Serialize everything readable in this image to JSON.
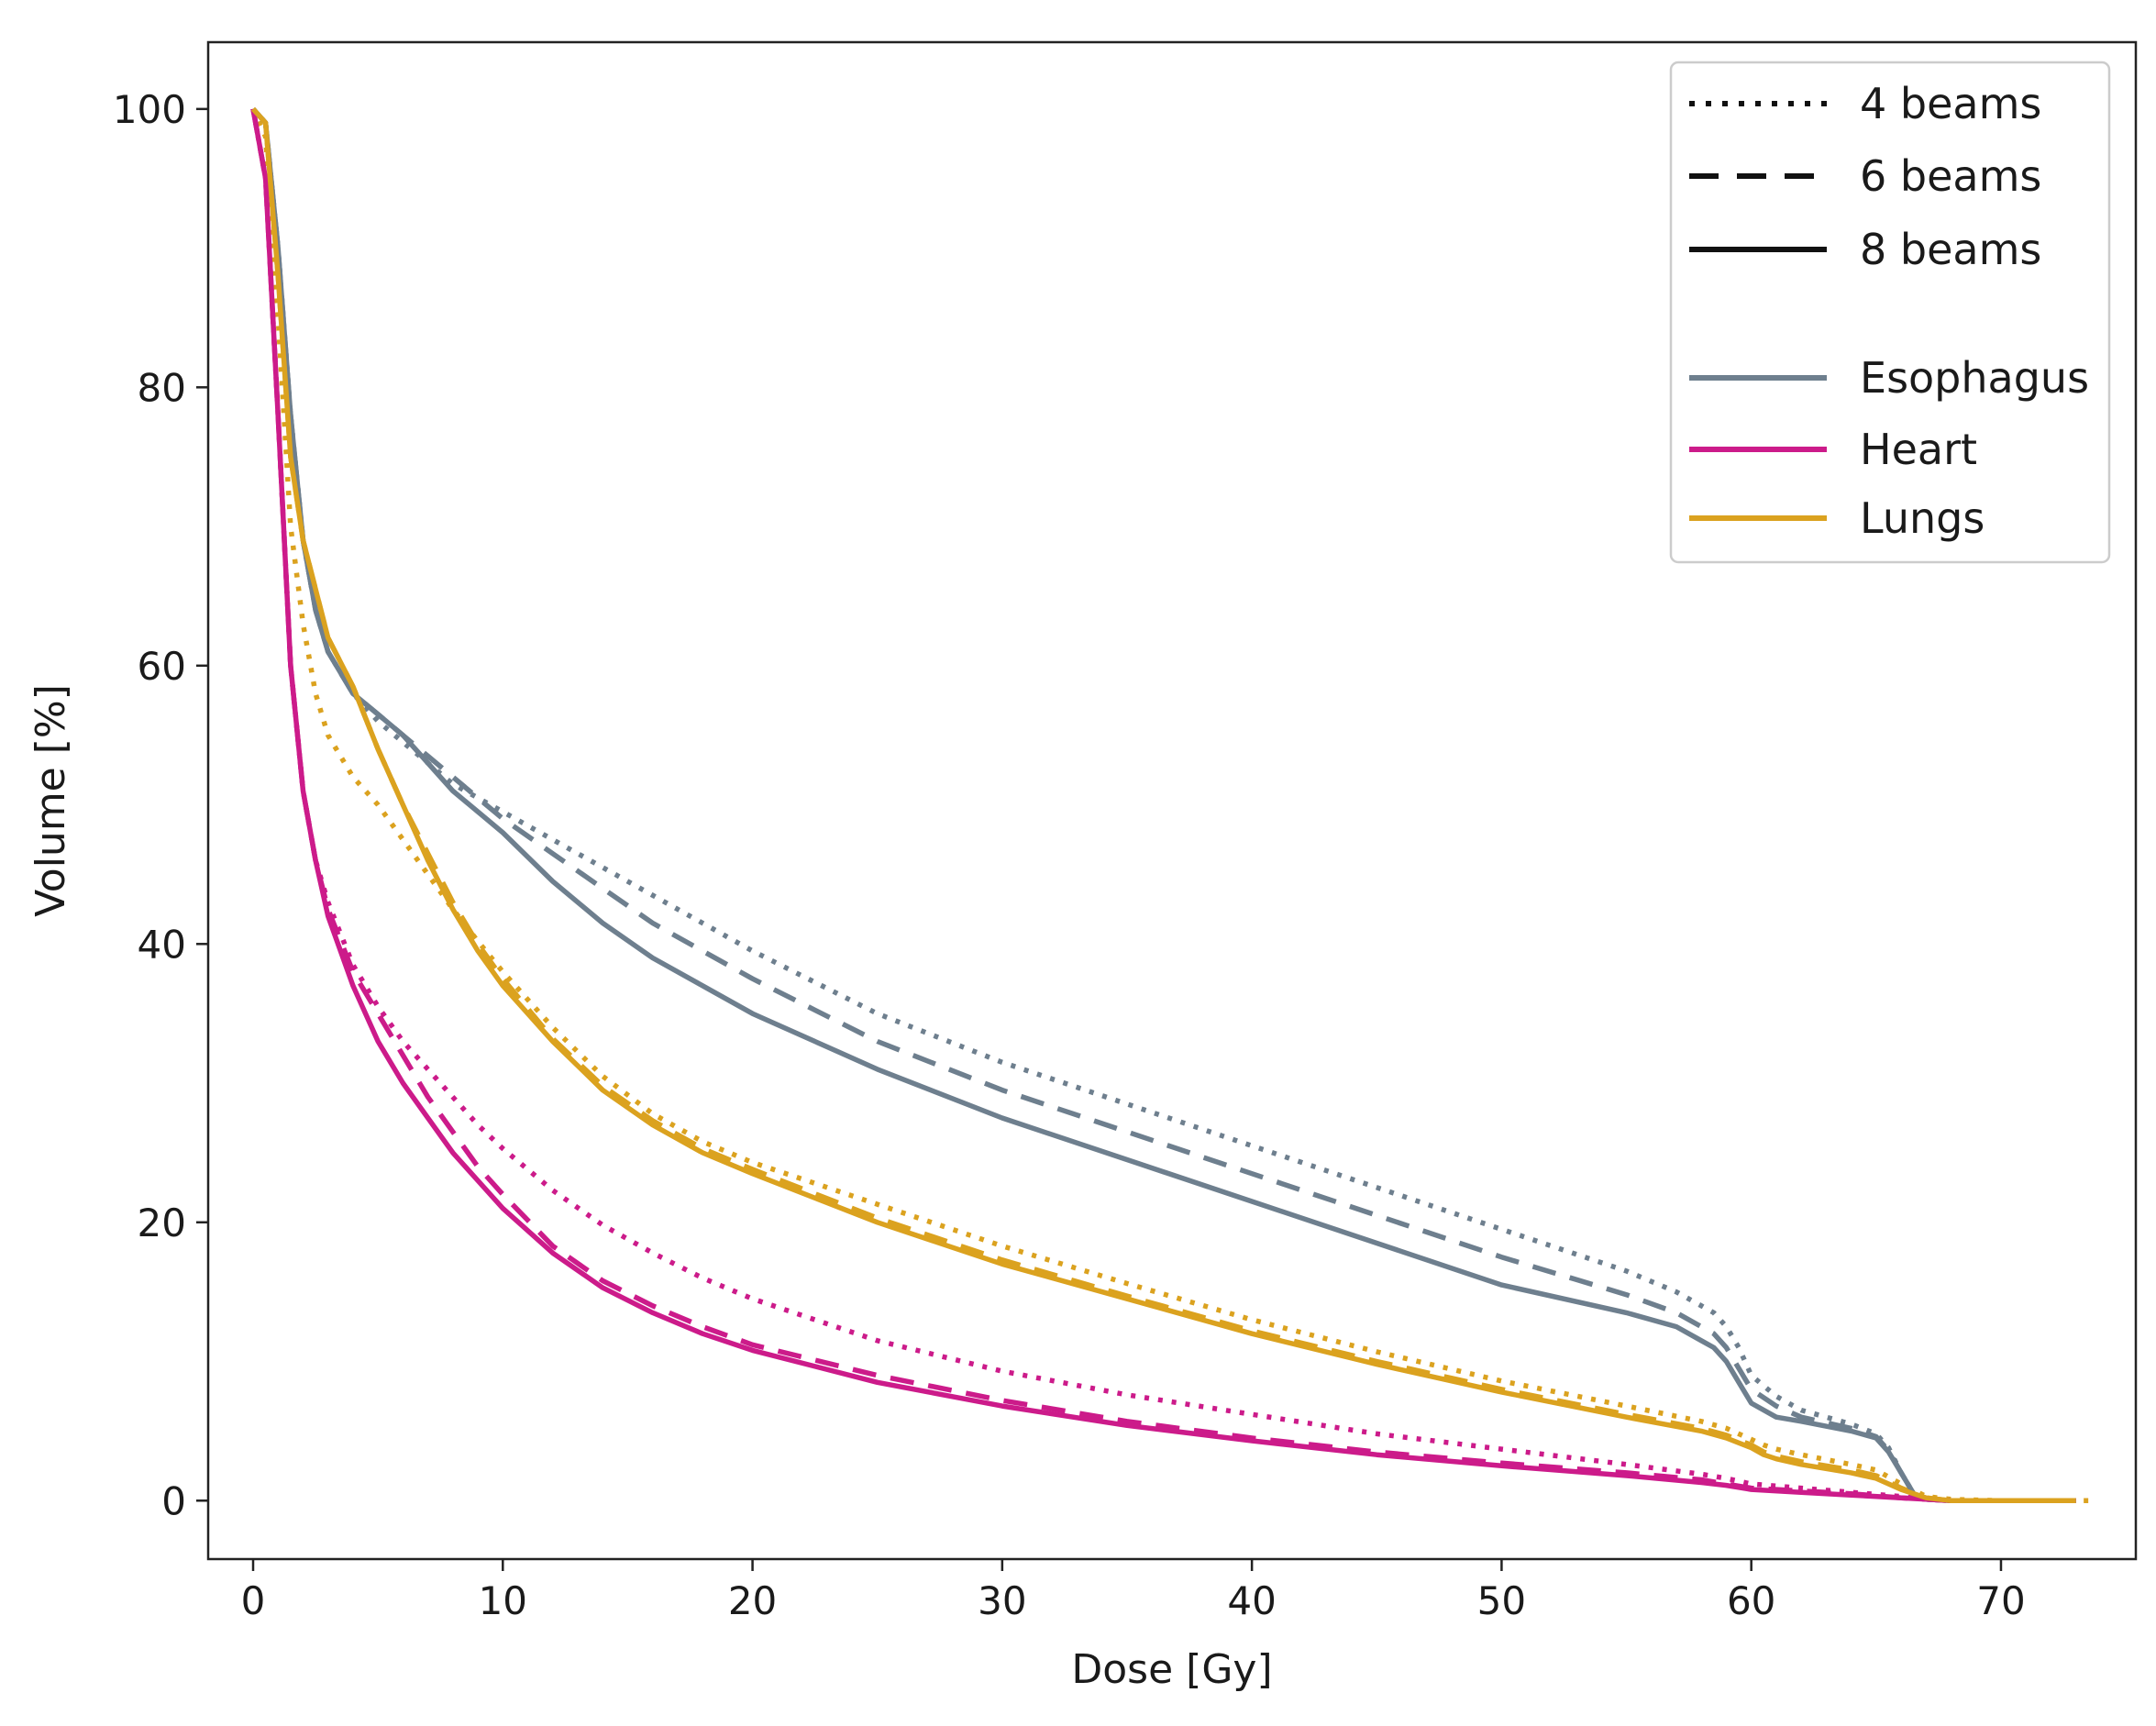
{
  "chart_data": {
    "type": "line",
    "title": "",
    "xlabel": "Dose [Gy]",
    "ylabel": "Volume [%]",
    "xlim": [
      -1.8,
      75.4
    ],
    "ylim": [
      -4.2,
      104.8
    ],
    "xticks": [
      0,
      10,
      20,
      30,
      40,
      50,
      60,
      70
    ],
    "yticks": [
      0,
      20,
      40,
      60,
      80,
      100
    ],
    "grid": false,
    "legend_position": "top-right",
    "legend": {
      "styles": [
        {
          "label": "4 beams",
          "dash": "dotted"
        },
        {
          "label": "6 beams",
          "dash": "dashed"
        },
        {
          "label": "8 beams",
          "dash": "solid"
        }
      ],
      "structures": [
        {
          "label": "Esophagus",
          "color": "#6e7f8e"
        },
        {
          "label": "Heart",
          "color": "#cc1b8a"
        },
        {
          "label": "Lungs",
          "color": "#dba21f"
        }
      ]
    },
    "series": [
      {
        "name": "Esophagus",
        "beams": "8 beams",
        "color": "#6e7f8e",
        "dash": "solid",
        "x": [
          0,
          0.5,
          1,
          1.5,
          2,
          2.5,
          3,
          4,
          5,
          6,
          7,
          8,
          9,
          10,
          12,
          14,
          16,
          18,
          20,
          25,
          30,
          35,
          40,
          45,
          50,
          55,
          57,
          58,
          58.5,
          59,
          59.5,
          60,
          61,
          62,
          64,
          65,
          65.5,
          66,
          66.5,
          67,
          68,
          70,
          72,
          73
        ],
        "y": [
          100,
          99,
          90,
          78,
          69,
          64,
          61,
          58,
          56.5,
          55,
          53,
          51,
          49.5,
          48,
          44.5,
          41.5,
          39,
          37,
          35,
          31,
          27.5,
          24.5,
          21.5,
          18.5,
          15.5,
          13.5,
          12.5,
          11.5,
          11,
          10,
          8.5,
          7,
          6,
          5.7,
          5,
          4.5,
          3.5,
          2,
          0.5,
          0.1,
          0,
          0,
          0,
          0
        ]
      },
      {
        "name": "Esophagus",
        "beams": "6 beams",
        "color": "#6e7f8e",
        "dash": "dashed",
        "x": [
          0,
          0.5,
          1,
          1.5,
          2,
          2.5,
          3,
          4,
          5,
          6,
          7,
          8,
          9,
          10,
          12,
          14,
          16,
          18,
          20,
          25,
          30,
          35,
          40,
          45,
          50,
          55,
          57,
          58,
          58.5,
          59,
          59.5,
          60,
          61,
          62,
          64,
          65,
          65.5,
          66,
          66.5,
          67,
          68,
          70,
          72,
          73
        ],
        "y": [
          100,
          99,
          90,
          78,
          69,
          64,
          61,
          58,
          56.5,
          55,
          53.5,
          52,
          50.5,
          49,
          46.5,
          44,
          41.5,
          39.5,
          37.5,
          33,
          29.5,
          26.5,
          23.5,
          20.5,
          17.5,
          14.8,
          13.5,
          12.5,
          12,
          11,
          9.5,
          8,
          6.8,
          6,
          5.2,
          4.6,
          3.6,
          2,
          0.5,
          0.1,
          0,
          0,
          0,
          0
        ]
      },
      {
        "name": "Esophagus",
        "beams": "4 beams",
        "color": "#6e7f8e",
        "dash": "dotted",
        "x": [
          0,
          0.5,
          1,
          1.5,
          2,
          2.5,
          3,
          4,
          5,
          6,
          7,
          8,
          9,
          10,
          12,
          14,
          16,
          18,
          20,
          25,
          30,
          35,
          40,
          45,
          50,
          55,
          57,
          58,
          58.5,
          59,
          59.5,
          60,
          61,
          62,
          64,
          65,
          65.5,
          66,
          66.5,
          67,
          68,
          70,
          72,
          73
        ],
        "y": [
          100,
          99,
          90,
          78,
          69,
          64,
          61,
          58,
          56,
          54.5,
          53,
          51.5,
          50.5,
          49.5,
          47.5,
          45.5,
          43.5,
          41.5,
          39.5,
          35,
          31.5,
          28.5,
          25.5,
          22.5,
          19.5,
          16.5,
          15,
          14,
          13.5,
          12.5,
          11,
          9,
          7.5,
          6.5,
          5.5,
          4.8,
          3.8,
          2,
          0.5,
          0.1,
          0,
          0,
          0,
          0
        ]
      },
      {
        "name": "Heart",
        "beams": "8 beams",
        "color": "#cc1b8a",
        "dash": "solid",
        "x": [
          0,
          0.5,
          1,
          1.5,
          2,
          2.5,
          3,
          4,
          5,
          6,
          7,
          8,
          9,
          10,
          12,
          14,
          16,
          18,
          20,
          25,
          30,
          35,
          40,
          45,
          50,
          55,
          58,
          59,
          60,
          62,
          64,
          66,
          67,
          68,
          70,
          72,
          73
        ],
        "y": [
          100,
          95,
          78,
          60,
          51,
          46,
          42,
          37,
          33,
          30,
          27.5,
          25,
          23,
          21,
          17.8,
          15.3,
          13.5,
          12,
          10.8,
          8.5,
          6.8,
          5.4,
          4.3,
          3.3,
          2.5,
          1.8,
          1.3,
          1.1,
          0.8,
          0.6,
          0.4,
          0.2,
          0.1,
          0,
          0,
          0,
          0
        ]
      },
      {
        "name": "Heart",
        "beams": "6 beams",
        "color": "#cc1b8a",
        "dash": "dashed",
        "x": [
          0,
          0.5,
          1,
          1.5,
          2,
          2.5,
          3,
          4,
          5,
          6,
          7,
          8,
          9,
          10,
          12,
          14,
          16,
          18,
          20,
          25,
          30,
          35,
          40,
          45,
          50,
          55,
          58,
          59,
          60,
          62,
          64,
          66,
          67,
          68,
          70,
          72,
          73
        ],
        "y": [
          100,
          95,
          78,
          60,
          51,
          46,
          42.5,
          38,
          35,
          32,
          29,
          26.5,
          24,
          22,
          18.3,
          15.8,
          14,
          12.5,
          11.2,
          9,
          7.2,
          5.7,
          4.5,
          3.5,
          2.7,
          2,
          1.5,
          1.2,
          0.9,
          0.7,
          0.5,
          0.2,
          0.1,
          0,
          0,
          0,
          0
        ]
      },
      {
        "name": "Heart",
        "beams": "4 beams",
        "color": "#cc1b8a",
        "dash": "dotted",
        "x": [
          0,
          0.5,
          1,
          1.5,
          2,
          2.5,
          3,
          4,
          5,
          6,
          7,
          8,
          9,
          10,
          12,
          14,
          16,
          18,
          20,
          25,
          30,
          35,
          40,
          45,
          50,
          55,
          58,
          59,
          60,
          62,
          64,
          66,
          67,
          68,
          70,
          72,
          73
        ],
        "y": [
          100,
          95,
          78,
          60,
          51,
          46,
          43,
          38.5,
          35.5,
          33,
          31,
          29,
          27,
          25.3,
          22.3,
          19.8,
          17.8,
          16,
          14.5,
          11.5,
          9.3,
          7.6,
          6.2,
          4.8,
          3.7,
          2.6,
          1.9,
          1.6,
          1.2,
          0.9,
          0.6,
          0.3,
          0.1,
          0,
          0,
          0,
          0
        ]
      },
      {
        "name": "Lungs",
        "beams": "8 beams",
        "color": "#dba21f",
        "dash": "solid",
        "x": [
          0,
          0.5,
          1,
          1.5,
          2,
          2.5,
          3,
          4,
          5,
          6,
          7,
          8,
          9,
          10,
          12,
          14,
          16,
          18,
          20,
          25,
          30,
          35,
          40,
          45,
          50,
          55,
          58,
          59,
          60,
          60.5,
          61,
          62,
          64,
          65,
          66,
          67,
          68,
          70,
          72,
          73
        ],
        "y": [
          100,
          99,
          88,
          75,
          69,
          65.5,
          62,
          58.5,
          54,
          50,
          46,
          42.5,
          39.5,
          37,
          33,
          29.5,
          27,
          25,
          23.5,
          20,
          17,
          14.5,
          12,
          9.8,
          7.8,
          6,
          5,
          4.5,
          3.8,
          3.3,
          3,
          2.6,
          2,
          1.6,
          0.8,
          0.2,
          0,
          0,
          0,
          0
        ]
      },
      {
        "name": "Lungs",
        "beams": "6 beams",
        "color": "#dba21f",
        "dash": "dashed",
        "x": [
          0,
          0.5,
          1,
          1.5,
          2,
          2.5,
          3,
          4,
          5,
          6,
          7,
          8,
          9,
          10,
          12,
          14,
          16,
          18,
          20,
          25,
          30,
          35,
          40,
          45,
          50,
          55,
          58,
          59,
          60,
          60.5,
          61,
          62,
          64,
          65,
          66,
          67,
          68,
          70,
          72,
          73
        ],
        "y": [
          100,
          99,
          88,
          75,
          69,
          65.5,
          62,
          58.5,
          54,
          50,
          46.5,
          43,
          40,
          37.5,
          33.2,
          29.8,
          27.3,
          25.3,
          23.8,
          20.3,
          17.3,
          14.7,
          12.2,
          10,
          8,
          6.2,
          5.2,
          4.7,
          4,
          3.5,
          3.2,
          2.8,
          2.2,
          1.8,
          0.9,
          0.2,
          0,
          0,
          0,
          0
        ]
      },
      {
        "name": "Lungs",
        "beams": "4 beams",
        "color": "#dba21f",
        "dash": "dotted",
        "x": [
          0,
          0.5,
          1,
          1.5,
          2,
          2.5,
          3,
          4,
          5,
          6,
          7,
          8,
          9,
          10,
          12,
          14,
          16,
          18,
          20,
          25,
          30,
          35,
          40,
          45,
          50,
          55,
          58,
          59,
          60,
          60.5,
          61,
          62,
          64,
          65,
          66,
          67,
          68,
          70,
          72,
          73,
          73.8
        ],
        "y": [
          100,
          98,
          85,
          70,
          63,
          58,
          55,
          52,
          50,
          47.5,
          45,
          42.5,
          40.2,
          38,
          34,
          30.5,
          27.8,
          25.8,
          24.3,
          21.3,
          18.3,
          15.6,
          13,
          10.7,
          8.6,
          6.8,
          5.7,
          5.2,
          4.4,
          4,
          3.7,
          3.3,
          2.6,
          2.2,
          1.2,
          0.3,
          0.1,
          0,
          0,
          0,
          0
        ]
      }
    ]
  }
}
